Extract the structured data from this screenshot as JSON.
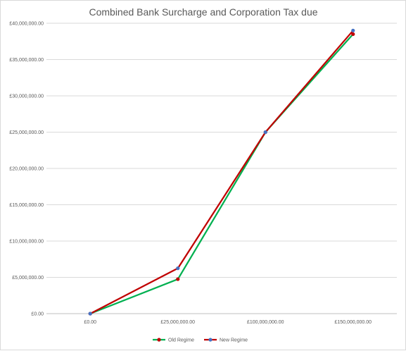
{
  "chart_data": {
    "type": "line",
    "title": "Combined Bank Surcharge and Corporation Tax due",
    "xlabel": "",
    "ylabel": "",
    "categories": [
      "£0.00",
      "£25,000,000.00",
      "£100,000,000.00",
      "£150,000,000.00"
    ],
    "y_ticks": [
      0,
      5000000,
      10000000,
      15000000,
      20000000,
      25000000,
      30000000,
      35000000,
      40000000
    ],
    "y_tick_labels": [
      "£0.00",
      "£5,000,000.00",
      "£10,000,000.00",
      "£15,000,000.00",
      "£20,000,000.00",
      "£25,000,000.00",
      "£30,000,000.00",
      "£35,000,000.00",
      "£40,000,000.00"
    ],
    "ylim": [
      0,
      40000000
    ],
    "grid": true,
    "legend_position": "bottom",
    "series": [
      {
        "name": "Old Regime",
        "values": [
          0,
          4750000,
          25000000,
          38500000
        ],
        "line_color": "#00b050",
        "marker_color": "#c00000"
      },
      {
        "name": "New Regime",
        "values": [
          0,
          6250000,
          25000000,
          39000000
        ],
        "line_color": "#c00000",
        "marker_color": "#4472c4"
      }
    ]
  }
}
